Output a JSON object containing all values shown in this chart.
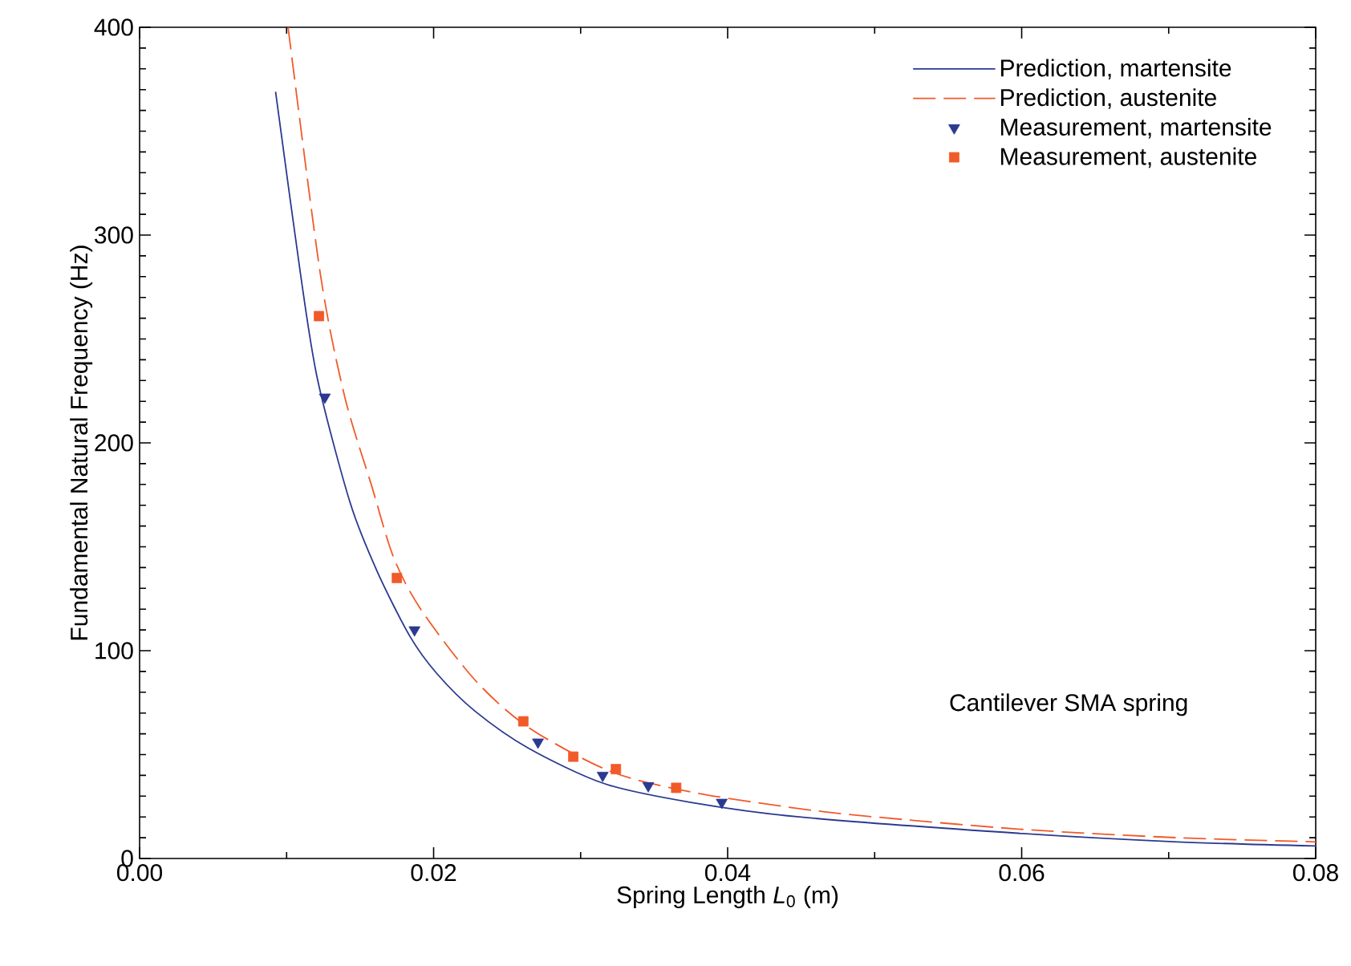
{
  "chart_data": {
    "type": "line",
    "xlabel": "Spring Length *L*$_{0}$ (m)",
    "ylabel": "Fundamental Natural Frequency (Hz)",
    "xlim": [
      0,
      0.08
    ],
    "ylim": [
      0,
      400
    ],
    "xticks": [
      {
        "value": 0,
        "label": "0.00"
      },
      {
        "value": 0.02,
        "label": "0.02"
      },
      {
        "value": 0.04,
        "label": "0.04"
      },
      {
        "value": 0.06,
        "label": "0.06"
      },
      {
        "value": 0.08,
        "label": "0.08"
      }
    ],
    "yticks": [
      0,
      100,
      200,
      300,
      400
    ],
    "legend": "top right",
    "grid": false,
    "annotations": [
      "Cantilever SMA spring"
    ],
    "series": [
      {
        "name": "Prediction, martensite",
        "color": "#2b3990",
        "line_style": "solid",
        "marker": "none",
        "x": [
          0.00925,
          0.01095,
          0.01212,
          0.01433,
          0.01617,
          0.01838,
          0.02022,
          0.0228,
          0.02647,
          0.03162,
          0.0375,
          0.04487,
          0.06007,
          0.07062,
          0.08
        ],
        "values": [
          369,
          281,
          230,
          171,
          138,
          107,
          89,
          71,
          53,
          36,
          27,
          20,
          12,
          8,
          6
        ]
      },
      {
        "name": "Prediction, austenite",
        "color": "#f15a29",
        "line_style": "dashed",
        "marker": "none",
        "x": [
          0.0101,
          0.0123,
          0.01396,
          0.0158,
          0.01727,
          0.01912,
          0.0228,
          0.02647,
          0.032,
          0.0375,
          0.04487,
          0.05002,
          0.06007,
          0.07062,
          0.08
        ],
        "values": [
          400,
          281,
          222,
          179,
          145,
          120,
          86,
          63,
          42,
          32,
          24,
          20,
          14,
          10,
          8
        ]
      },
      {
        "name": "Measurement, martensite",
        "type": "scatter",
        "color": "#2b3990",
        "marker": "triangle",
        "x": [
          0.0126,
          0.0187,
          0.0271,
          0.0315,
          0.0346,
          0.0396
        ],
        "values": [
          222,
          110,
          56,
          40,
          35,
          27
        ]
      },
      {
        "name": "Measurement, austenite",
        "type": "scatter",
        "color": "#f15a29",
        "marker": "square",
        "x": [
          0.0122,
          0.0175,
          0.0261,
          0.0295,
          0.0324,
          0.0365
        ],
        "values": [
          261,
          135,
          66,
          49,
          43,
          34
        ]
      }
    ]
  }
}
